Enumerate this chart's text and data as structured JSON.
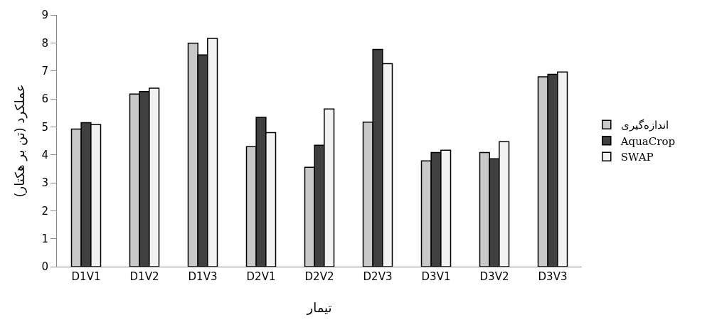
{
  "chart_data": {
    "type": "bar",
    "xlabel": "تیمار",
    "ylabel": "عملکرد (تن بر هکتار)",
    "categories": [
      "D1V1",
      "D1V2",
      "D1V3",
      "D2V1",
      "D2V2",
      "D2V3",
      "D3V1",
      "D3V2",
      "D3V3"
    ],
    "series": [
      {
        "name": "اندازه‌گیری",
        "color": "#c8c8c8",
        "values": [
          4.92,
          6.17,
          7.99,
          4.29,
          3.55,
          5.17,
          3.78,
          4.08,
          6.79
        ]
      },
      {
        "name": "AquaCrop",
        "color": "#404040",
        "values": [
          5.15,
          6.26,
          7.57,
          5.34,
          4.34,
          7.77,
          4.08,
          3.86,
          6.88
        ]
      },
      {
        "name": "SWAP",
        "color": "#f2f2f2",
        "values": [
          5.08,
          6.38,
          8.16,
          4.79,
          5.64,
          7.26,
          4.16,
          4.47,
          6.96
        ]
      }
    ],
    "ylim": [
      0,
      9
    ],
    "yticks": [
      0,
      1,
      2,
      3,
      4,
      5,
      6,
      7,
      8,
      9
    ],
    "grid": false,
    "legend": "right"
  }
}
